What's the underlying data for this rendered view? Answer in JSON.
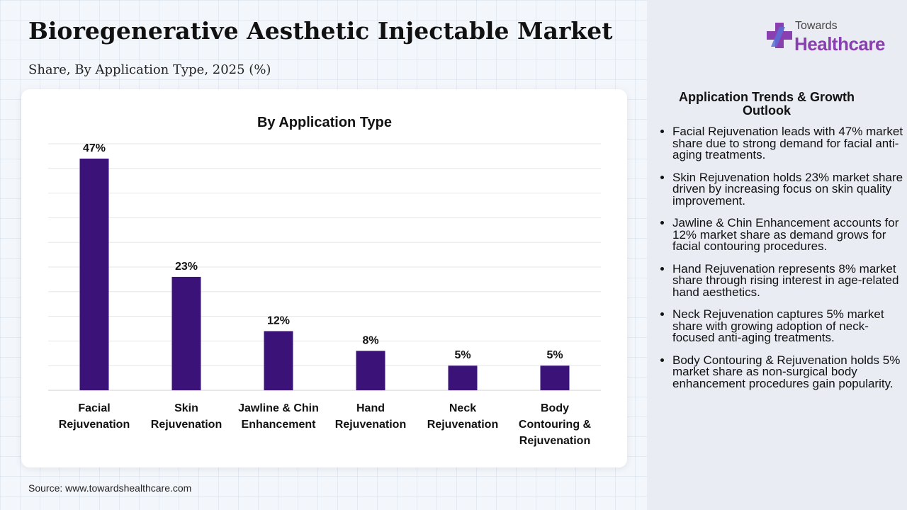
{
  "header": {
    "title": "Bioregenerative Aesthetic Injectable Market",
    "subtitle": "Share, By Application Type, 2025 (%)"
  },
  "source": "Source: www.towardshealthcare.com",
  "logo": {
    "top_text": "Towards",
    "main_text": "Healthcare",
    "icon": "cross-plus-icon",
    "colors": {
      "primary": "#8a3fb0",
      "secondary": "#5b6fd6"
    }
  },
  "panel": {
    "heading": "Application Trends & Growth Outlook",
    "bullets": [
      "Facial Rejuvenation leads with 47% market share due to strong demand for facial anti-aging treatments.",
      "Skin Rejuvenation holds 23% market share driven by increasing focus on skin quality improvement.",
      "Jawline & Chin Enhancement accounts for 12% market share as demand grows for facial contouring procedures.",
      "Hand Rejuvenation represents 8% market share through rising interest in age-related hand aesthetics.",
      "Neck Rejuvenation captures 5% market share with growing adoption of neck-focused anti-aging treatments.",
      "Body Contouring & Rejuvenation holds 5% market share as non-surgical body enhancement procedures gain popularity."
    ]
  },
  "chart_data": {
    "type": "bar",
    "title": "By Application Type",
    "categories": [
      [
        "Facial",
        "Rejuvenation"
      ],
      [
        "Skin",
        "Rejuvenation"
      ],
      [
        "Jawline & Chin",
        "Enhancement"
      ],
      [
        "Hand",
        "Rejuvenation"
      ],
      [
        "Neck",
        "Rejuvenation"
      ],
      [
        "Body",
        "Contouring &",
        "Rejuvenation"
      ]
    ],
    "values": [
      47,
      23,
      12,
      8,
      5,
      5
    ],
    "value_labels": [
      "47%",
      "23%",
      "12%",
      "8%",
      "5%",
      "5%"
    ],
    "ylim": [
      0,
      50
    ],
    "grid": true,
    "bar_color": "#3a1278",
    "xlabel": "",
    "ylabel": ""
  }
}
